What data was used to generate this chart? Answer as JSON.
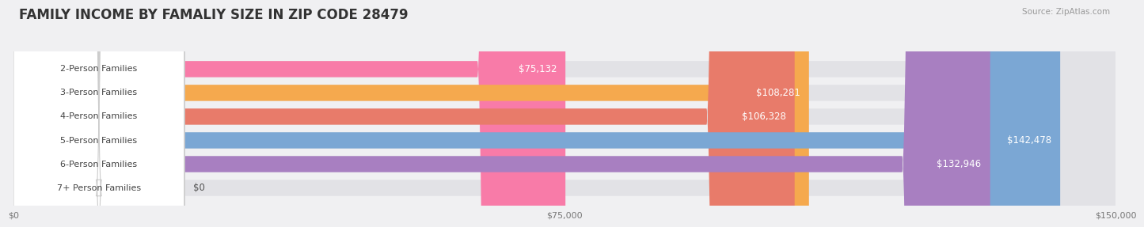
{
  "title": "FAMILY INCOME BY FAMALIY SIZE IN ZIP CODE 28479",
  "source": "Source: ZipAtlas.com",
  "categories": [
    "2-Person Families",
    "3-Person Families",
    "4-Person Families",
    "5-Person Families",
    "6-Person Families",
    "7+ Person Families"
  ],
  "values": [
    75132,
    108281,
    106328,
    142478,
    132946,
    0
  ],
  "labels": [
    "$75,132",
    "$108,281",
    "$106,328",
    "$142,478",
    "$132,946",
    "$0"
  ],
  "bar_colors": [
    "#F87BA8",
    "#F5A94E",
    "#E87B6A",
    "#7BA7D4",
    "#A87FC1",
    "#7ECECE"
  ],
  "xlim": [
    0,
    150000
  ],
  "xticklabels": [
    "$0",
    "$75,000",
    "$150,000"
  ],
  "xtick_vals": [
    0,
    75000,
    150000
  ],
  "title_fontsize": 12,
  "bar_label_fontsize": 8.5,
  "cat_label_fontsize": 8,
  "bg_color": "#f0f0f2",
  "bar_bg_color": "#e2e2e6",
  "label_box_color": "white",
  "label_text_color": "#555555",
  "grid_color": "#d0d0d8"
}
